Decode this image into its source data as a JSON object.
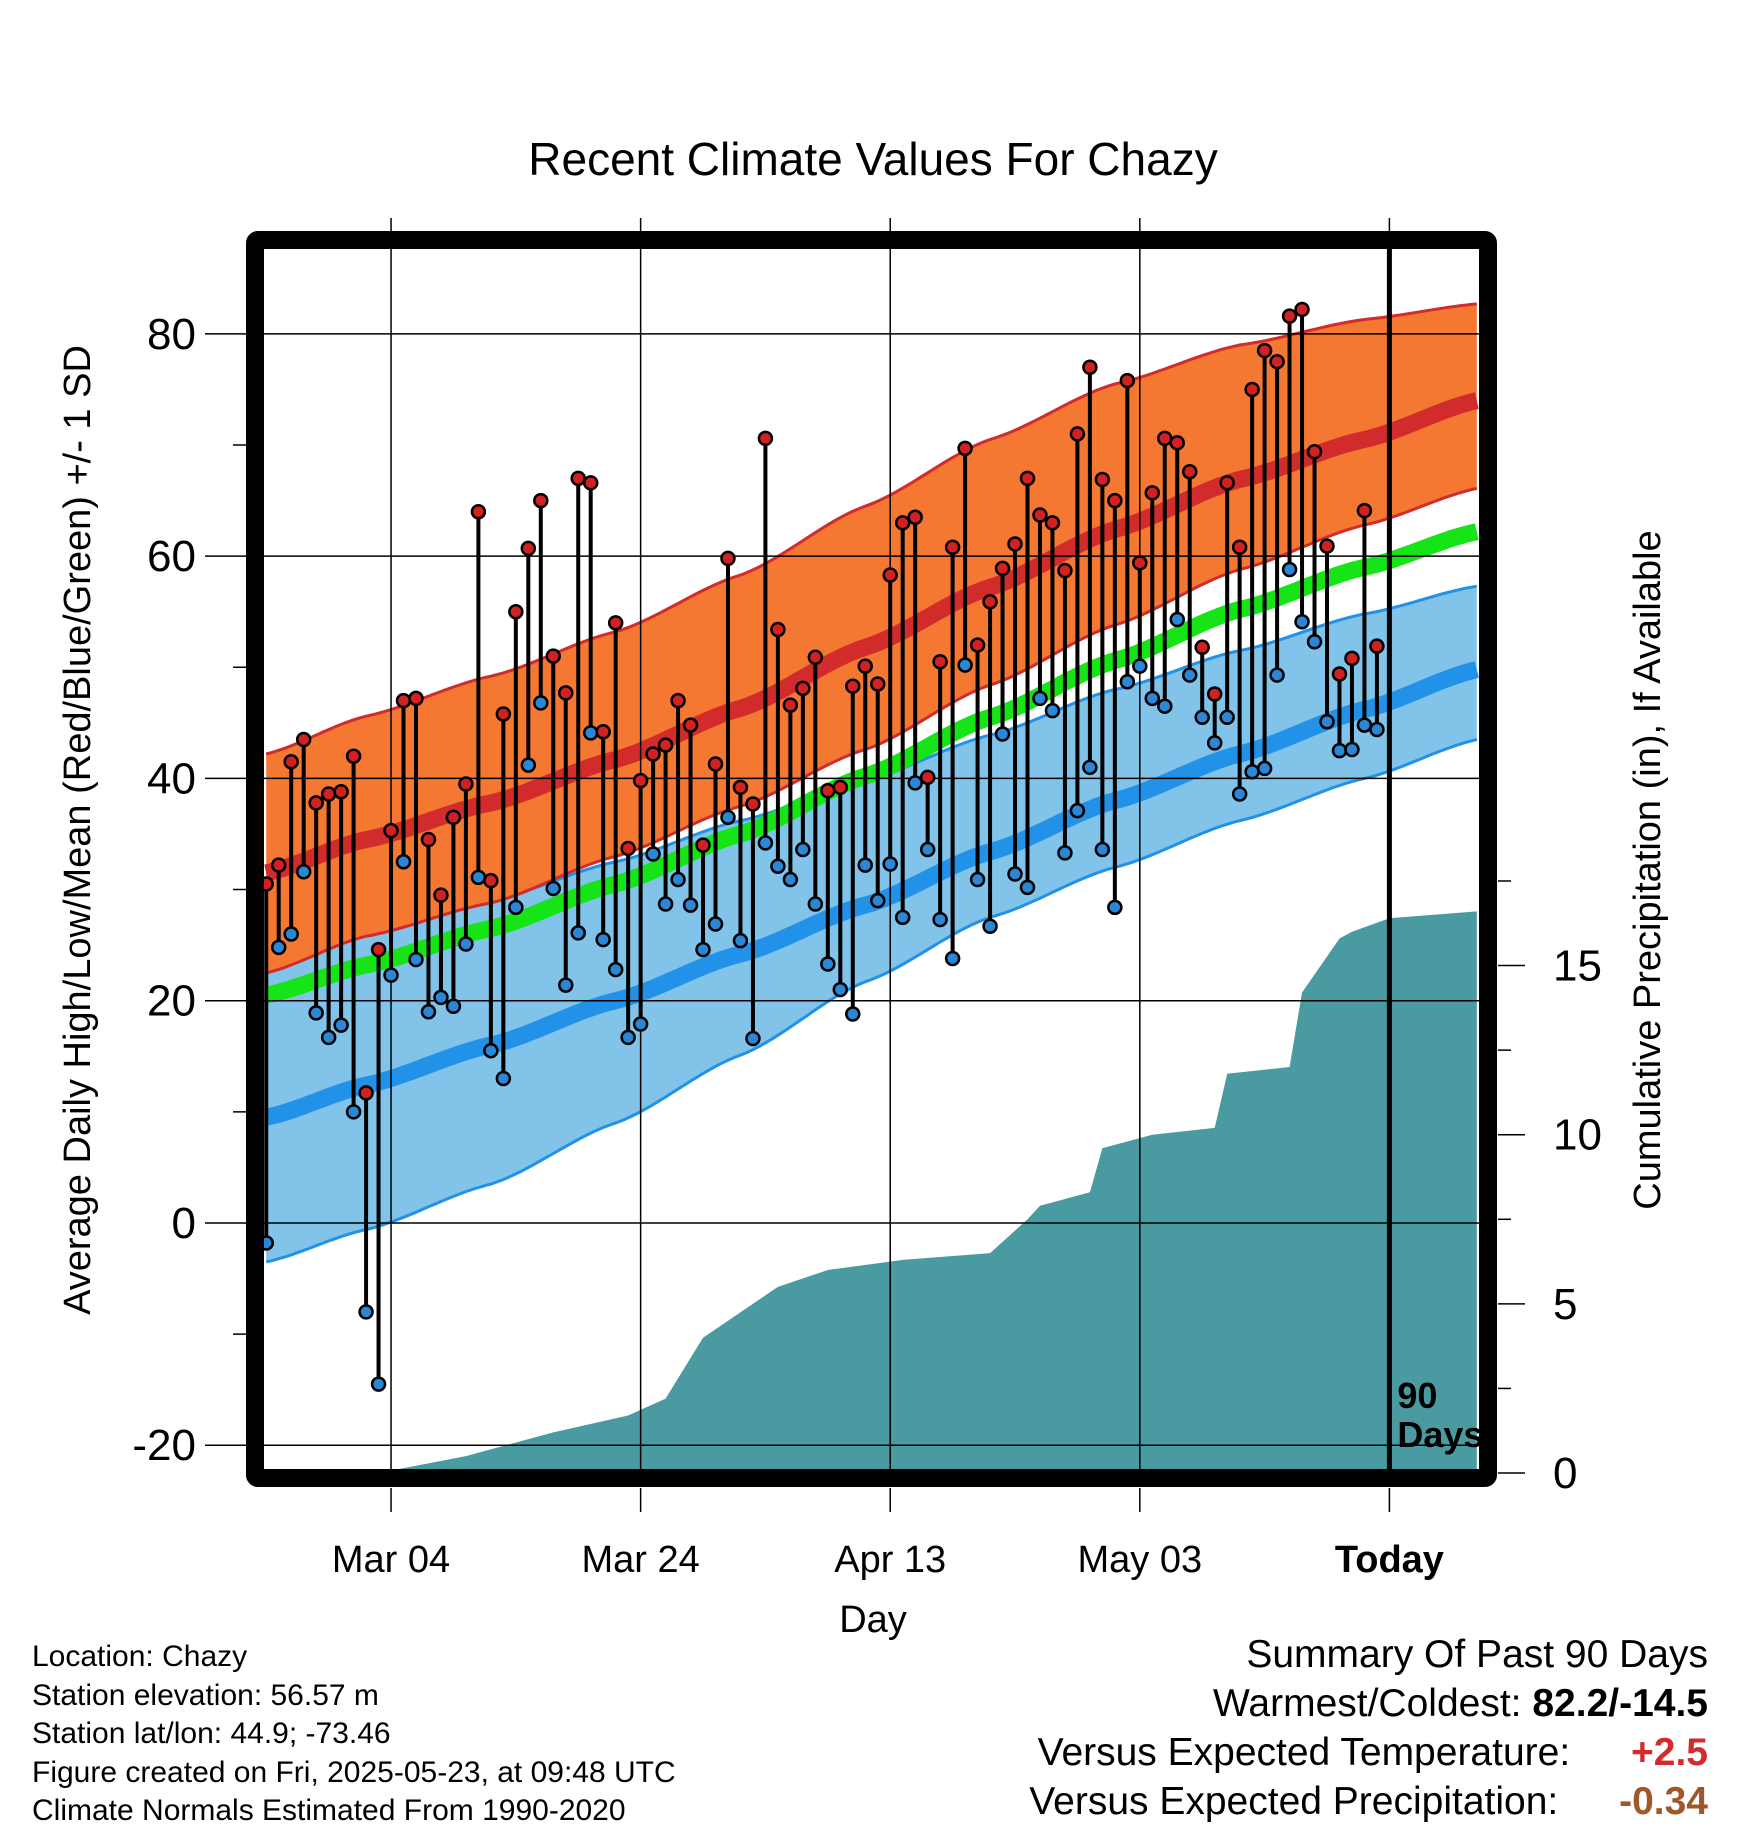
{
  "chart_data": {
    "type": "line",
    "title": "Recent Climate Values For Chazy",
    "xlabel": "Day",
    "ylabel": "Average Daily High/Low/Mean (Red/Blue/Green) +/- 1 SD",
    "y2label": "Cumulative Precipitation (in), If Available",
    "ylim": [
      -22.5,
      88
    ],
    "y2lim": [
      0,
      36.3
    ],
    "xlim": [
      -88.5,
      9.5
    ],
    "x_ticks": [
      {
        "day": -78,
        "label": "Mar 04"
      },
      {
        "day": -58,
        "label": "Mar 24"
      },
      {
        "day": -38,
        "label": "Apr 13"
      },
      {
        "day": -18,
        "label": "May 03"
      },
      {
        "day": 2,
        "label": "Today"
      }
    ],
    "y_ticks": [
      -20,
      0,
      20,
      40,
      60,
      80
    ],
    "y2_ticks": [
      0,
      5,
      10,
      15
    ],
    "grid": true,
    "period_label": "90 Days",
    "today_day": 2,
    "normals_days": [
      -88,
      -80,
      -70,
      -60,
      -50,
      -40,
      -30,
      -20,
      -10,
      0,
      9
    ],
    "normal_high": [
      31.5,
      34.5,
      37.8,
      41.7,
      46.3,
      51.8,
      57.2,
      62.4,
      66.9,
      70.5,
      74.0
    ],
    "high_upper": [
      42.2,
      45.6,
      49.2,
      53.2,
      58.3,
      64.5,
      70.5,
      75.5,
      79.0,
      81.3,
      82.7
    ],
    "high_lower": [
      22.5,
      25.8,
      28.8,
      33.0,
      37.5,
      42.6,
      48.4,
      53.8,
      58.8,
      62.8,
      66.1
    ],
    "normal_low": [
      9.5,
      12.4,
      16.0,
      20.0,
      24.2,
      28.6,
      33.4,
      38.0,
      42.2,
      46.2,
      49.8
    ],
    "low_upper": [
      24.0,
      26.5,
      29.0,
      32.5,
      36.2,
      39.8,
      43.9,
      48.0,
      51.5,
      54.8,
      57.3
    ],
    "low_lower": [
      -3.5,
      -0.6,
      3.5,
      9.0,
      15.1,
      21.7,
      27.5,
      32.0,
      36.2,
      40.0,
      43.5
    ],
    "normal_mean": [
      20.5,
      23.2,
      26.5,
      30.5,
      35.0,
      40.2,
      45.5,
      50.6,
      55.2,
      59.0,
      62.2
    ],
    "series": [
      {
        "name": "High",
        "values": [
          30.5,
          32.2,
          41.5,
          43.5,
          37.8,
          38.6,
          38.8,
          42.0,
          11.7,
          24.6,
          35.3,
          47.0,
          47.2,
          34.5,
          29.5,
          36.5,
          39.5,
          64.0,
          30.8,
          45.8,
          55.0,
          60.7,
          65.0,
          51.0,
          47.7,
          67.0,
          66.6,
          44.2,
          54.0,
          33.7,
          39.8,
          42.2,
          43.0,
          47.0,
          44.8,
          34.0,
          41.3,
          59.8,
          39.2,
          37.7,
          70.6,
          53.4,
          46.6,
          48.1,
          50.9,
          38.9,
          39.2,
          48.3,
          50.1,
          48.5,
          58.3,
          63.0,
          63.5,
          40.1,
          50.5,
          60.8,
          69.7,
          52.0,
          55.9,
          58.9,
          61.1,
          67.0,
          63.7,
          63.0,
          58.7,
          71.0,
          77.0,
          66.9,
          65.0,
          75.8,
          59.4,
          65.7,
          70.6,
          70.2,
          67.6,
          51.8,
          47.6,
          66.6,
          60.8,
          75.0,
          78.5,
          77.5,
          81.6,
          82.2,
          69.4,
          60.9,
          49.4,
          50.8,
          64.1,
          51.9
        ]
      },
      {
        "name": "Low",
        "values": [
          -1.8,
          24.8,
          26.0,
          31.6,
          18.9,
          16.7,
          17.8,
          10.0,
          -8.0,
          -14.5,
          22.3,
          32.5,
          23.7,
          19.0,
          20.3,
          19.5,
          25.1,
          31.1,
          15.5,
          13.0,
          28.4,
          41.2,
          46.8,
          30.1,
          21.4,
          26.1,
          44.1,
          25.5,
          22.8,
          16.7,
          17.9,
          33.2,
          28.7,
          30.9,
          28.6,
          24.6,
          26.9,
          36.5,
          25.4,
          16.6,
          34.2,
          32.1,
          30.9,
          33.6,
          28.7,
          23.3,
          21.0,
          18.8,
          32.2,
          29.0,
          32.3,
          27.5,
          39.6,
          33.6,
          27.3,
          23.8,
          50.2,
          30.9,
          26.7,
          44.0,
          31.4,
          30.2,
          47.2,
          46.1,
          33.3,
          37.1,
          41.0,
          33.6,
          28.4,
          48.7,
          50.1,
          47.2,
          46.5,
          54.3,
          49.3,
          45.5,
          43.2,
          45.5,
          38.6,
          40.6,
          40.9,
          49.3,
          58.8,
          54.1,
          52.3,
          45.1,
          42.5,
          42.6,
          44.8,
          44.4
        ]
      }
    ],
    "precipitation": {
      "days": [
        -88,
        -79,
        -72,
        -65,
        -59,
        -56,
        -53,
        -47,
        -43,
        -37,
        -30,
        -27,
        -26,
        -22,
        -21,
        -17,
        -12,
        -11,
        -6,
        -5,
        -2,
        -1,
        2,
        9
      ],
      "values": [
        0,
        0,
        0.5,
        1.2,
        1.7,
        2.2,
        4.0,
        5.5,
        6.0,
        6.3,
        6.5,
        7.5,
        7.9,
        8.3,
        9.6,
        10.0,
        10.2,
        11.8,
        12.0,
        14.2,
        15.8,
        16.0,
        16.4,
        16.6
      ]
    },
    "colors": {
      "high_band": "#f57832",
      "high_line": "#d12b2b",
      "low_band": "#82c3e9",
      "low_line": "#2291e8",
      "mean_line": "#16e416",
      "precip": "#4a9aa2",
      "high_marker": "#d12121",
      "low_marker": "#2b86d6"
    }
  },
  "info": {
    "location": "Location: Chazy",
    "elevation": "Station elevation: 56.57 m",
    "latlon": "Station lat/lon: 44.9; -73.46",
    "created": "Figure created on Fri, 2025-05-23, at 09:48 UTC",
    "normals": "Climate Normals Estimated From 1990-2020"
  },
  "summary": {
    "heading": "Summary Of Past 90 Days",
    "warmest_label": "Warmest/Coldest:",
    "warmest_value": "82.2/-14.5",
    "temp_label": "Versus Expected Temperature:",
    "temp_value": "+2.5",
    "temp_color": "#d42a2a",
    "precip_label": "Versus Expected Precipitation:",
    "precip_value": "-0.34",
    "precip_color": "#a0582a"
  }
}
